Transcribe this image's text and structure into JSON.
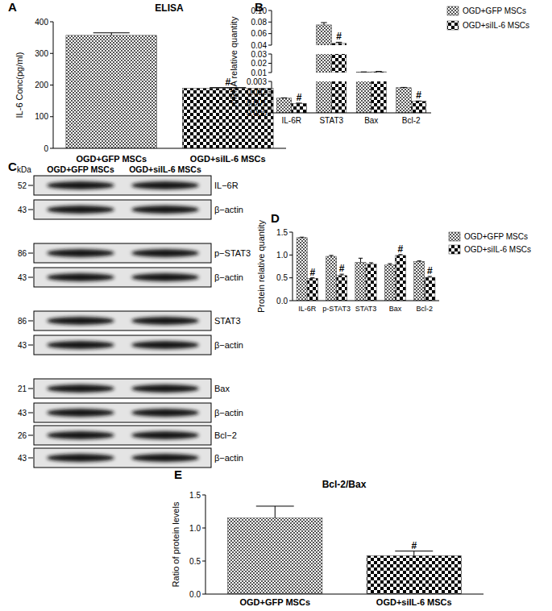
{
  "chart_data": [
    {
      "panel": "A",
      "type": "bar",
      "title": "ELISA",
      "ylabel": "IL-6 Conc(pg/ml)",
      "categories": [
        "OGD+GFP MSCs",
        "OGD+siIL-6 MSCs"
      ],
      "values": [
        357,
        190
      ],
      "errors": [
        8,
        2
      ],
      "annotations": [
        null,
        "#"
      ],
      "colors": [
        "#555555",
        "#000000"
      ],
      "ylim": [
        0,
        400
      ],
      "yticks": [
        0,
        100,
        200,
        300,
        400
      ],
      "grid": false
    },
    {
      "panel": "B",
      "type": "bar",
      "ylabel": "mRNA relative quantity",
      "categories": [
        "IL-6R",
        "STAT3",
        "Bax",
        "Bcl-2"
      ],
      "series": [
        {
          "name": "OGD+GFP MSCs",
          "color": "#555555",
          "values": [
            0.0014,
            0.075,
            0.0104,
            0.0024
          ],
          "errors": [
            3e-05,
            0.004,
            0.0003,
            3e-05
          ]
        },
        {
          "name": "OGD+siIL-6 MSCs",
          "color": "#000000",
          "values": [
            0.0009,
            0.043,
            0.0108,
            0.0011
          ],
          "errors": [
            3e-05,
            0.002,
            0.0004,
            3e-05
          ],
          "annotations": [
            "#",
            "#",
            null,
            "#"
          ]
        }
      ],
      "y_segments": [
        {
          "ylim": [
            0,
            0.003
          ],
          "yticks": [
            {
              "value": 0,
              "label": "0.000"
            },
            0.001,
            0.002,
            0.003
          ]
        },
        {
          "ylim": [
            0.01,
            0.03
          ],
          "yticks": [
            0.01,
            0.02,
            0.03
          ]
        },
        {
          "ylim": [
            0.04,
            0.1
          ],
          "yticks": [
            0.04,
            0.06,
            0.08,
            {
              "value": 0.1,
              "label": "0.10"
            }
          ]
        }
      ],
      "legend": "right",
      "grid": false
    },
    {
      "panel": "D",
      "type": "bar",
      "ylabel": "Protein relative quantity",
      "categories": [
        "IL-6R",
        "p-STAT3",
        "STAT3",
        "Bax",
        "Bcl-2"
      ],
      "series": [
        {
          "name": "OGD+GFP MSCs",
          "color": "#555555",
          "values": [
            1.38,
            0.97,
            0.84,
            0.78,
            0.86
          ],
          "errors": [
            0.01,
            0.02,
            0.09,
            0.03,
            0.01
          ]
        },
        {
          "name": "OGD+siIL-6 MSCs",
          "color": "#000000",
          "values": [
            0.49,
            0.55,
            0.8,
            0.99,
            0.51
          ],
          "errors": [
            0.01,
            0.03,
            0.03,
            0.02,
            0.02
          ],
          "annotations": [
            "#",
            "#",
            null,
            "#",
            "#"
          ]
        }
      ],
      "ylim": [
        0,
        1.5
      ],
      "yticks": [
        {
          "value": 0,
          "label": "0.0"
        },
        0.5,
        {
          "value": 1,
          "label": "1.0"
        },
        1.5
      ],
      "legend": "right",
      "grid": false
    },
    {
      "panel": "E",
      "type": "bar",
      "title": "Bcl-2/Bax",
      "ylabel": "Ratio of protein levels",
      "categories": [
        "OGD+GFP MSCs",
        "OGD+siIL-6 MSCs"
      ],
      "values": [
        1.15,
        0.58
      ],
      "errors": [
        0.18,
        0.07
      ],
      "annotations": [
        null,
        "#"
      ],
      "colors": [
        "#555555",
        "#000000"
      ],
      "ylim": [
        0,
        1.5
      ],
      "yticks": [
        {
          "value": 0,
          "label": "0.0"
        },
        0.5,
        {
          "value": 1,
          "label": "1.0"
        },
        1.5
      ],
      "grid": false
    }
  ],
  "blot": {
    "panel": "C",
    "unit": "kDa",
    "lanes": [
      "OGD+GFP MSCs",
      "OGD+siIL-6 MSCs"
    ],
    "rows": [
      {
        "label": "IL−6R",
        "kda": 52
      },
      {
        "label": "β−actin",
        "kda": 43
      },
      {
        "label": "p−STAT3",
        "kda": 86
      },
      {
        "label": "β−actin",
        "kda": 43
      },
      {
        "label": "STAT3",
        "kda": 86
      },
      {
        "label": "β−actin",
        "kda": 43
      },
      {
        "label": "Bax",
        "kda": 21
      },
      {
        "label": "β−actin",
        "kda": 43
      },
      {
        "label": "Bcl−2",
        "kda": 26
      },
      {
        "label": "β−actin",
        "kda": 43
      }
    ]
  }
}
